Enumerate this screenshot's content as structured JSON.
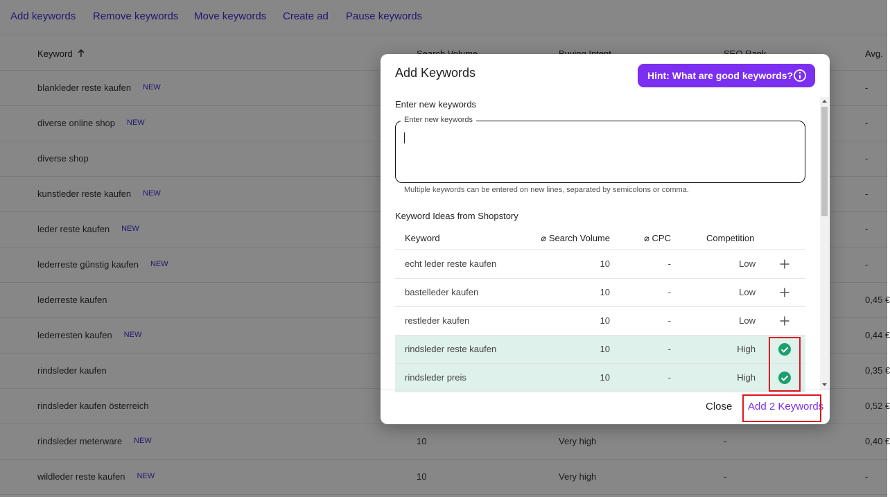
{
  "toolbar": {
    "links": [
      "Add keywords",
      "Remove keywords",
      "Move keywords",
      "Create ad",
      "Pause keywords"
    ]
  },
  "table": {
    "headers": [
      "Keyword",
      "Search Volume",
      "Buying Intent",
      "SEO Rank",
      "Avg."
    ],
    "rows": [
      {
        "keyword": "blankleder reste kaufen",
        "badge": "NEW",
        "avg": "-"
      },
      {
        "keyword": "diverse online shop",
        "badge": "NEW",
        "avg": "-"
      },
      {
        "keyword": "diverse shop",
        "avg": "-"
      },
      {
        "keyword": "kunstleder reste kaufen",
        "badge": "NEW",
        "avg": "-"
      },
      {
        "keyword": "leder reste kaufen",
        "badge": "NEW",
        "avg": "-"
      },
      {
        "keyword": "lederreste günstig kaufen",
        "badge": "NEW",
        "avg": "-"
      },
      {
        "keyword": "lederreste kaufen",
        "avg": "0,45 €"
      },
      {
        "keyword": "lederresten kaufen",
        "badge": "NEW",
        "avg": "0,44 €"
      },
      {
        "keyword": "rindsleder kaufen",
        "avg": "0,35 €"
      },
      {
        "keyword": "rindsleder kaufen österreich",
        "avg": "0,52 €"
      },
      {
        "keyword": "rindsleder meterware",
        "badge": "NEW",
        "volume": 10,
        "intent": "Very high",
        "seo": "-",
        "avg": "0,40 €"
      },
      {
        "keyword": "wildleder reste kaufen",
        "badge": "NEW",
        "volume": 10,
        "intent": "Very high",
        "seo": "-",
        "avg": "-"
      }
    ]
  },
  "modal": {
    "title": "Add Keywords",
    "hint_button": "Hint: What are good keywords?",
    "input_label": "Enter new keywords",
    "input_legend": "Enter new keywords",
    "input_help": "Multiple keywords can be entered on new lines, separated by semicolons or comma.",
    "ideas_title": "Keyword Ideas from Shopstory",
    "ideas": {
      "headers": [
        "Keyword",
        "⌀ Search Volume",
        "⌀ CPC",
        "Competition"
      ],
      "rows": [
        {
          "keyword": "echt leder reste kaufen",
          "volume": 10,
          "cpc": "-",
          "competition": "Low",
          "selected": false
        },
        {
          "keyword": "bastelleder kaufen",
          "volume": 10,
          "cpc": "-",
          "competition": "Low",
          "selected": false
        },
        {
          "keyword": "restleder kaufen",
          "volume": 10,
          "cpc": "-",
          "competition": "Low",
          "selected": false
        },
        {
          "keyword": "rindsleder reste kaufen",
          "volume": 10,
          "cpc": "-",
          "competition": "High",
          "selected": true
        },
        {
          "keyword": "rindsleder preis",
          "volume": 10,
          "cpc": "-",
          "competition": "High",
          "selected": true
        }
      ]
    },
    "close_button": "Close",
    "add_button": "Add 2 Keywords"
  }
}
